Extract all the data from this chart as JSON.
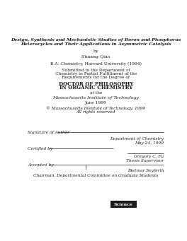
{
  "background_color": "#ffffff",
  "title_line1": "Design, Synthesis and Mechanistic Studies of Boron and Phosphorus",
  "title_line2": "Heterocycles and Their Applications in Asymmetric Catalysis",
  "by": "by",
  "author": "Shuang Qiao",
  "degree_info": "B.A. Chemistry, Harvard University (1994)",
  "submitted_lines": [
    "Submitted to the Department of",
    "Chemistry in Partial Fulfillment of the",
    "Requirements for the Degree of"
  ],
  "degree_line1": "DOCTOR OF PHILOSOPHY",
  "degree_line2": "IN ORGANIC CHEMISTRY",
  "at_the": "at the",
  "institution": "Massachusetts Institute of Technology",
  "date": "June 1999",
  "copyright_line1": "© Massachusetts Institute of Technology, 1999",
  "copyright_line2": "All rights reserved",
  "sig_label": "Signature of Author",
  "dept_line1": "Department of Chemistry",
  "dept_line2": "May 24, 1999",
  "cert_label": "Certified by",
  "cert_name": "Gregory C. Fu",
  "cert_title": "Thesis Supervisor",
  "accept_label": "Accepted by",
  "accept_name": "Dietmar Seyferth",
  "accept_title": "Chairman, Departmental Committee on Graduate Students",
  "text_color": "#1a1a1a",
  "line_color": "#1a1a1a",
  "stamp_text": "Science",
  "stamp_bg": "#2a2a2a"
}
